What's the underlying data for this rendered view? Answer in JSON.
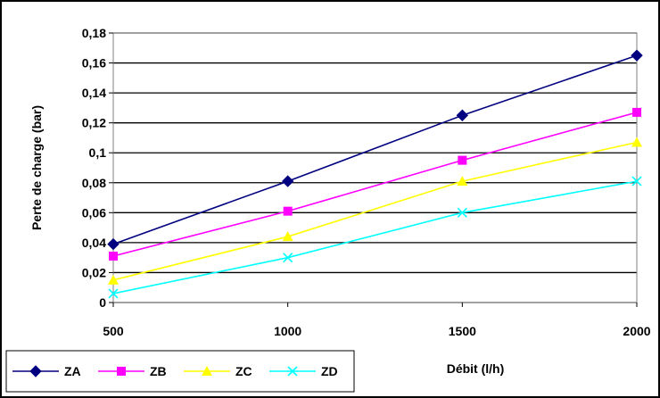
{
  "chart_data": {
    "type": "line",
    "title": "",
    "xlabel": "Débit (l/h)",
    "ylabel": "Perte de charge (bar)",
    "x": [
      500,
      1000,
      1500,
      2000
    ],
    "xlim": [
      500,
      2000
    ],
    "ylim": [
      0,
      0.18
    ],
    "x_ticks": [
      "500",
      "1000",
      "1500",
      "2000"
    ],
    "y_ticks": [
      "0",
      "0,02",
      "0,04",
      "0,06",
      "0,08",
      "0,1",
      "0,12",
      "0,14",
      "0,16",
      "0,18"
    ],
    "grid": "horizontal",
    "legend_position": "bottom-left",
    "series": [
      {
        "name": "ZA",
        "values": [
          0.039,
          0.081,
          0.125,
          0.165
        ],
        "color": "#000080",
        "marker": "diamond"
      },
      {
        "name": "ZB",
        "values": [
          0.031,
          0.061,
          0.095,
          0.127
        ],
        "color": "#ff00ff",
        "marker": "square"
      },
      {
        "name": "ZC",
        "values": [
          0.015,
          0.044,
          0.081,
          0.107
        ],
        "color": "#ffff00",
        "marker": "triangle"
      },
      {
        "name": "ZD",
        "values": [
          0.006,
          0.03,
          0.06,
          0.081
        ],
        "color": "#00ffff",
        "marker": "x"
      }
    ]
  }
}
